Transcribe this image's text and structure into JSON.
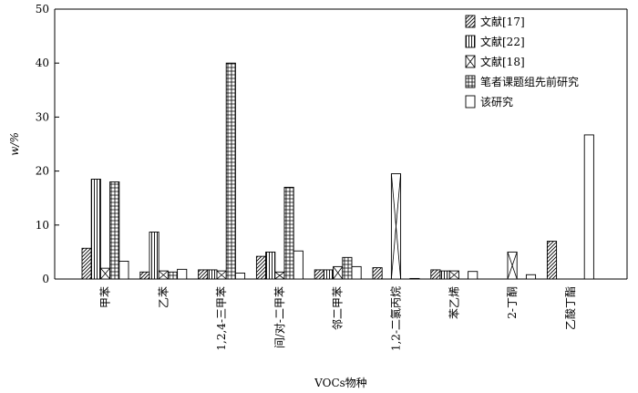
{
  "chart_data": {
    "type": "bar",
    "xlabel": "VOCs物种",
    "ylabel": "w/%",
    "ylim": [
      0,
      50
    ],
    "yticks": [
      0,
      10,
      20,
      30,
      40,
      50
    ],
    "grid": false,
    "legend_position": "top-right",
    "categories": [
      "甲苯",
      "乙苯",
      "1,2,4-三甲苯",
      "间/对-二甲苯",
      "邻二甲苯",
      "1,2-二氯丙烷",
      "苯乙烯",
      "2-丁酮",
      "乙酸丁酯"
    ],
    "series": [
      {
        "name": "文献[17]",
        "pattern": "diag",
        "values": [
          5.7,
          1.3,
          1.7,
          4.2,
          1.7,
          2.1,
          1.7,
          0,
          7.0
        ]
      },
      {
        "name": "文献[22]",
        "pattern": "vert",
        "values": [
          18.5,
          8.7,
          1.7,
          5.0,
          1.7,
          0,
          1.5,
          0,
          0
        ]
      },
      {
        "name": "文献[18]",
        "pattern": "cross",
        "values": [
          2.0,
          1.5,
          1.5,
          1.3,
          2.3,
          19.5,
          1.5,
          5.0,
          0
        ]
      },
      {
        "name": "笔者课题组先前研究",
        "pattern": "grid",
        "values": [
          18.0,
          1.3,
          40.0,
          17.0,
          4.0,
          0,
          0,
          0,
          0
        ]
      },
      {
        "name": "该研究",
        "pattern": "none",
        "values": [
          3.3,
          1.8,
          1.1,
          5.2,
          2.3,
          0.1,
          1.4,
          0.8,
          26.7
        ]
      }
    ]
  }
}
